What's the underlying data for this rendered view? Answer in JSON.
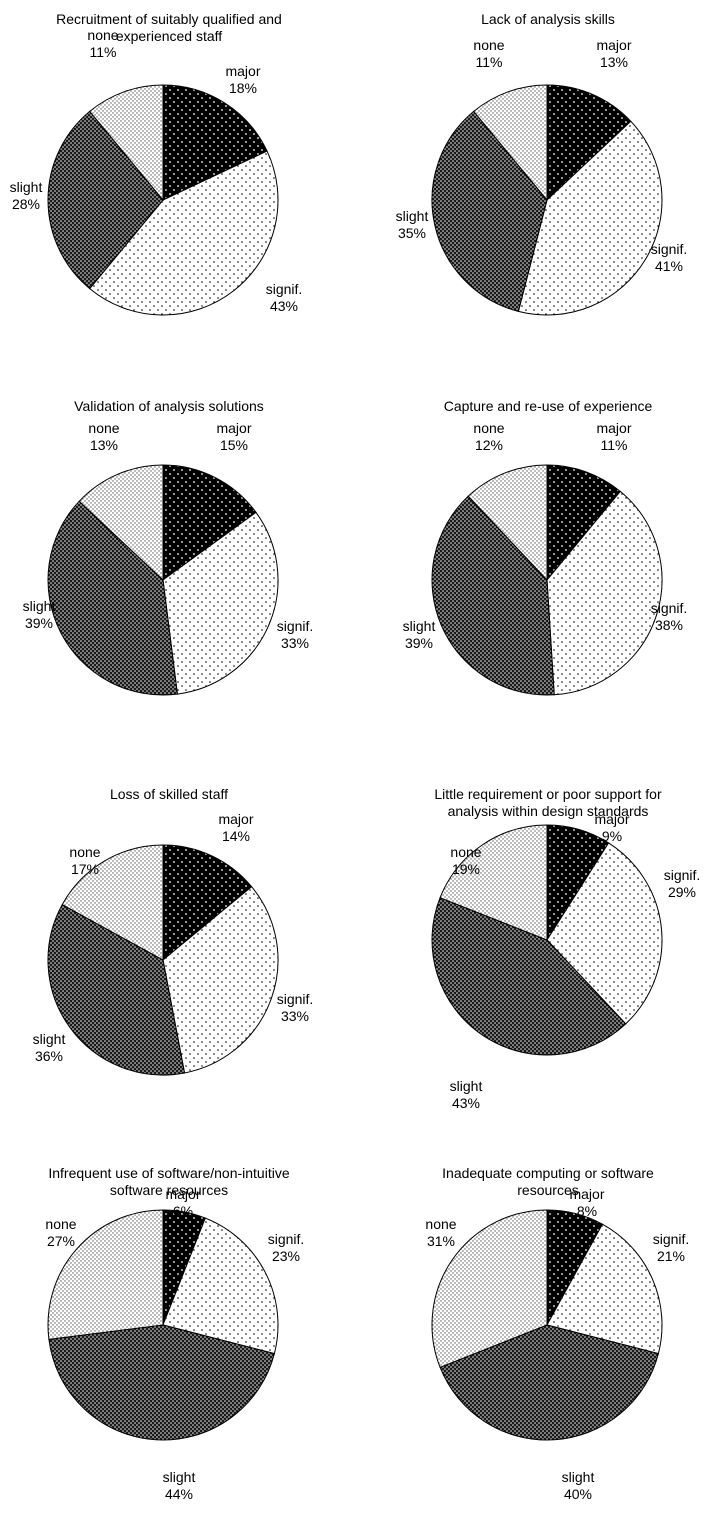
{
  "colors": {
    "major": "#000000",
    "signif": "#ffffff",
    "slight": "#1e1e1e",
    "none": "#f2f2f2",
    "outline": "#000000"
  },
  "chart_data": [
    {
      "type": "pie",
      "title": [
        "Recruitment of suitably qualified and",
        "experienced staff"
      ],
      "series": [
        {
          "name": "major",
          "value": 18
        },
        {
          "name": "signif.",
          "value": 43
        },
        {
          "name": "slight",
          "value": 28
        },
        {
          "name": "none",
          "value": 11
        }
      ]
    },
    {
      "type": "pie",
      "title": [
        "Lack of analysis skills"
      ],
      "series": [
        {
          "name": "major",
          "value": 13
        },
        {
          "name": "signif.",
          "value": 41
        },
        {
          "name": "slight",
          "value": 35
        },
        {
          "name": "none",
          "value": 11
        }
      ]
    },
    {
      "type": "pie",
      "title": [
        "Validation of analysis solutions"
      ],
      "series": [
        {
          "name": "major",
          "value": 15
        },
        {
          "name": "signif.",
          "value": 33
        },
        {
          "name": "slight",
          "value": 39
        },
        {
          "name": "none",
          "value": 13
        }
      ]
    },
    {
      "type": "pie",
      "title": [
        "Capture and re-use of experience"
      ],
      "series": [
        {
          "name": "major",
          "value": 11
        },
        {
          "name": "signif.",
          "value": 38
        },
        {
          "name": "slight",
          "value": 39
        },
        {
          "name": "none",
          "value": 12
        }
      ]
    },
    {
      "type": "pie",
      "title": [
        "Loss of skilled staff"
      ],
      "series": [
        {
          "name": "major",
          "value": 14
        },
        {
          "name": "signif.",
          "value": 33
        },
        {
          "name": "slight",
          "value": 36
        },
        {
          "name": "none",
          "value": 17
        }
      ]
    },
    {
      "type": "pie",
      "title": [
        "Little requirement or poor support for",
        "analysis within design standards"
      ],
      "series": [
        {
          "name": "major",
          "value": 9
        },
        {
          "name": "signif.",
          "value": 29
        },
        {
          "name": "slight",
          "value": 43
        },
        {
          "name": "none",
          "value": 19
        }
      ]
    },
    {
      "type": "pie",
      "title": [
        "Infrequent use of software/non-intuitive",
        "software resources"
      ],
      "series": [
        {
          "name": "major",
          "value": 6
        },
        {
          "name": "signif.",
          "value": 23
        },
        {
          "name": "slight",
          "value": 44
        },
        {
          "name": "none",
          "value": 27
        }
      ]
    },
    {
      "type": "pie",
      "title": [
        "Inadequate computing or software",
        "resources"
      ],
      "series": [
        {
          "name": "major",
          "value": 8
        },
        {
          "name": "signif.",
          "value": 21
        },
        {
          "name": "slight",
          "value": 40
        },
        {
          "name": "none",
          "value": 31
        }
      ]
    }
  ]
}
